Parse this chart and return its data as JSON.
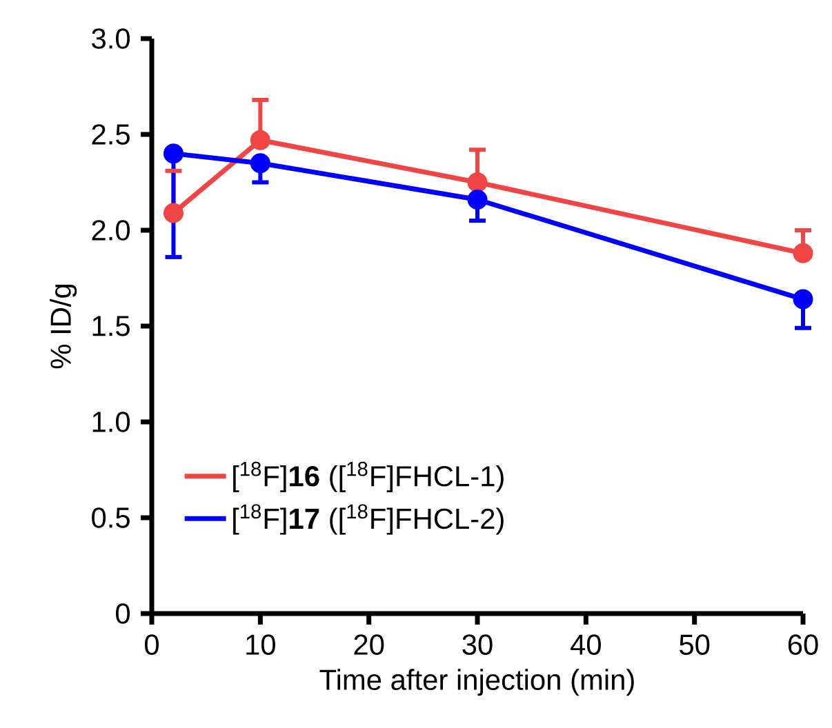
{
  "chart_data": {
    "type": "line",
    "xlabel": "Time after injection (min)",
    "ylabel": "% ID/g",
    "xlim": [
      0,
      60
    ],
    "xticks": [
      0,
      10,
      20,
      30,
      40,
      50,
      60
    ],
    "ylim": [
      0,
      3
    ],
    "yticks": [
      0,
      {
        "value": 0.5,
        "label": "0.5"
      },
      {
        "value": 1,
        "label": "1.0"
      },
      {
        "value": 1.5,
        "label": "1.5"
      },
      {
        "value": 2,
        "label": "2.0"
      },
      {
        "value": 2.5,
        "label": "2.5"
      },
      {
        "value": 3,
        "label": "3.0"
      }
    ],
    "x": [
      2,
      10,
      30,
      60
    ],
    "series": [
      {
        "name": "[$^{18}$F]**16** ([$^{18}$F]FHCL-1)",
        "color": "#f04545",
        "values": [
          2.09,
          2.47,
          2.25,
          1.88
        ],
        "errors": [
          [
            2.09,
            2.31
          ],
          [
            2.47,
            2.68
          ],
          [
            2.25,
            2.42
          ],
          [
            1.88,
            2.0
          ]
        ]
      },
      {
        "name": "[$^{18}$F]**17** ([$^{18}$F]FHCL-2)",
        "color": "#0000ff",
        "values": [
          2.4,
          2.35,
          2.16,
          1.64
        ],
        "errors": [
          [
            1.86,
            2.4
          ],
          [
            2.25,
            2.35
          ],
          [
            2.05,
            2.16
          ],
          [
            1.49,
            1.64
          ]
        ]
      }
    ],
    "marker": "circle",
    "line_style": "solid",
    "legend": "bottom left",
    "grid": false
  }
}
